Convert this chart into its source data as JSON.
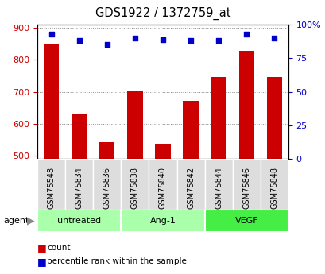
{
  "title": "GDS1922 / 1372759_at",
  "samples": [
    "GSM75548",
    "GSM75834",
    "GSM75836",
    "GSM75838",
    "GSM75840",
    "GSM75842",
    "GSM75844",
    "GSM75846",
    "GSM75848"
  ],
  "counts": [
    848,
    630,
    543,
    703,
    537,
    672,
    745,
    828,
    745
  ],
  "percentile_ranks": [
    93,
    88,
    85,
    90,
    89,
    88,
    88,
    93,
    90
  ],
  "groups": [
    {
      "label": "untreated",
      "start": 0,
      "end": 3,
      "color": "#aaffaa"
    },
    {
      "label": "Ang-1",
      "start": 3,
      "end": 6,
      "color": "#aaffaa"
    },
    {
      "label": "VEGF",
      "start": 6,
      "end": 9,
      "color": "#44ee44"
    }
  ],
  "ylim_left": [
    490,
    910
  ],
  "ylim_right": [
    0,
    100
  ],
  "yticks_left": [
    500,
    600,
    700,
    800,
    900
  ],
  "yticks_right": [
    0,
    25,
    50,
    75,
    100
  ],
  "yticklabels_right": [
    "0",
    "25",
    "50",
    "75",
    "100%"
  ],
  "bar_color": "#cc0000",
  "dot_color": "#0000cc",
  "bar_width": 0.55,
  "grid_color": "#888888",
  "bg_color": "#ffffff",
  "tick_label_color_left": "#cc0000",
  "tick_label_color_right": "#0000cc",
  "legend_items": [
    {
      "label": "count",
      "color": "#cc0000"
    },
    {
      "label": "percentile rank within the sample",
      "color": "#0000cc"
    }
  ],
  "figsize": [
    4.1,
    3.45
  ],
  "dpi": 100
}
